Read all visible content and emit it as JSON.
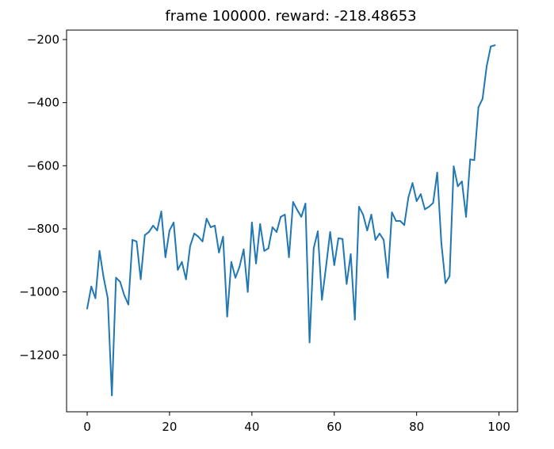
{
  "chart_data": {
    "type": "line",
    "title": "frame 100000. reward: -218.48653",
    "xlabel": "",
    "ylabel": "",
    "xlim": [
      -5,
      104.5
    ],
    "ylim": [
      -1380,
      -170
    ],
    "xticks": [
      0,
      20,
      40,
      60,
      80,
      100
    ],
    "xtick_labels": [
      "0",
      "20",
      "40",
      "60",
      "80",
      "100"
    ],
    "yticks": [
      -1200,
      -1000,
      -800,
      -600,
      -400,
      -200
    ],
    "ytick_labels": [
      "−1200",
      "−1000",
      "−800",
      "−600",
      "−400",
      "−200"
    ],
    "grid": false,
    "legend": "none",
    "series": [
      {
        "color": "#1f77b4",
        "x": [
          0,
          1,
          2,
          3,
          4,
          5,
          6,
          7,
          8,
          9,
          10,
          11,
          12,
          13,
          14,
          15,
          16,
          17,
          18,
          19,
          20,
          21,
          22,
          23,
          24,
          25,
          26,
          27,
          28,
          29,
          30,
          31,
          32,
          33,
          34,
          35,
          36,
          37,
          38,
          39,
          40,
          41,
          42,
          43,
          44,
          45,
          46,
          47,
          48,
          49,
          50,
          51,
          52,
          53,
          54,
          55,
          56,
          57,
          58,
          59,
          60,
          61,
          62,
          63,
          64,
          65,
          66,
          67,
          68,
          69,
          70,
          71,
          72,
          73,
          74,
          75,
          76,
          77,
          78,
          79,
          80,
          81,
          82,
          83,
          84,
          85,
          86,
          87,
          88,
          89,
          90,
          91,
          92,
          93,
          94,
          95,
          96,
          97,
          98,
          99
        ],
        "y": [
          -1053,
          -983,
          -1020,
          -870,
          -955,
          -1020,
          -1328,
          -955,
          -968,
          -1010,
          -1040,
          -835,
          -840,
          -960,
          -820,
          -810,
          -790,
          -805,
          -745,
          -890,
          -805,
          -780,
          -930,
          -905,
          -960,
          -855,
          -815,
          -825,
          -840,
          -768,
          -795,
          -790,
          -875,
          -825,
          -1078,
          -905,
          -955,
          -920,
          -865,
          -1000,
          -780,
          -910,
          -785,
          -870,
          -862,
          -795,
          -810,
          -762,
          -755,
          -890,
          -715,
          -740,
          -762,
          -720,
          -1160,
          -862,
          -808,
          -1025,
          -920,
          -810,
          -915,
          -830,
          -832,
          -975,
          -880,
          -1088,
          -730,
          -755,
          -805,
          -755,
          -835,
          -815,
          -835,
          -955,
          -748,
          -775,
          -775,
          -788,
          -700,
          -655,
          -712,
          -690,
          -738,
          -730,
          -718,
          -622,
          -845,
          -972,
          -950,
          -602,
          -665,
          -650,
          -762,
          -580,
          -582,
          -415,
          -388,
          -285,
          -222,
          -218
        ]
      }
    ]
  }
}
